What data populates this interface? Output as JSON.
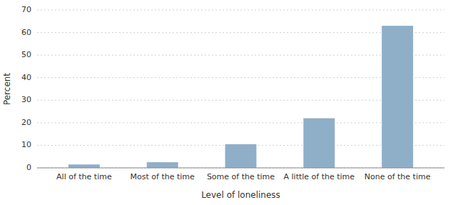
{
  "chart_data": {
    "type": "bar",
    "categories": [
      "All of the time",
      "Most of the time",
      "Some of the time",
      "A little of the time",
      "None of the time"
    ],
    "values": [
      1.5,
      2.5,
      10.5,
      22.0,
      63.0
    ],
    "color": "#8fafc8",
    "xlabel": "Level of loneliness",
    "ylabel": "Percent",
    "ylim": [
      0,
      70
    ],
    "yticks": [
      0,
      10,
      20,
      30,
      40,
      50,
      60,
      70
    ],
    "grid": true
  }
}
